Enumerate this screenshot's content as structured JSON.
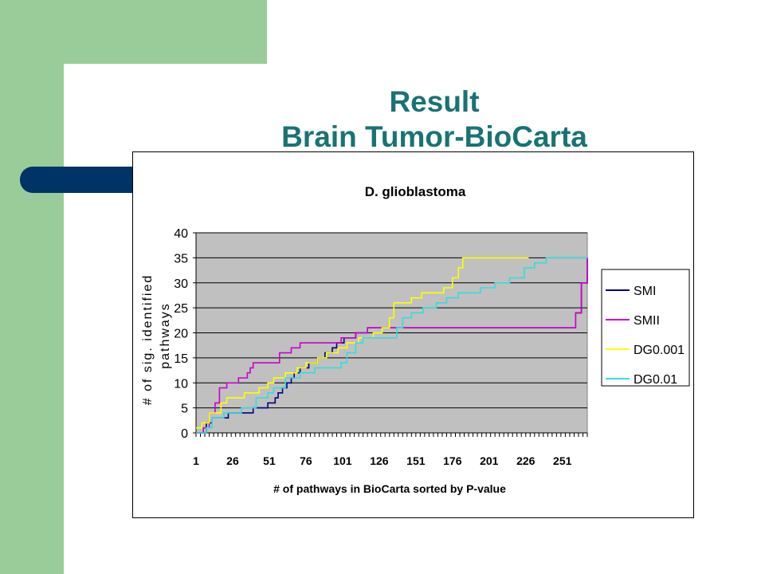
{
  "slide": {
    "title_line1": "Result",
    "title_line2": "Brain Tumor-BioCarta",
    "colors": {
      "green": "#99cc99",
      "navy": "#003366",
      "title": "#1a7373"
    }
  },
  "chart_data": {
    "type": "line",
    "title": "D. glioblastoma",
    "xlabel": "# of pathways in BioCarta sorted by P-value",
    "ylabel_line1": "# of sig. identified",
    "ylabel_line2": "pathways",
    "xlim": [
      1,
      268
    ],
    "ylim": [
      0,
      40
    ],
    "x_ticks": [
      1,
      26,
      51,
      76,
      101,
      126,
      151,
      176,
      201,
      226,
      251
    ],
    "y_ticks": [
      0,
      5,
      10,
      15,
      20,
      25,
      30,
      35,
      40
    ],
    "grid": true,
    "plot_background": "#c0c0c0",
    "legend_position": "right",
    "series": [
      {
        "name": "SMI",
        "color": "#000080",
        "points": [
          [
            1,
            0
          ],
          [
            5,
            0
          ],
          [
            8,
            2
          ],
          [
            12,
            3
          ],
          [
            20,
            3
          ],
          [
            23,
            4
          ],
          [
            28,
            4
          ],
          [
            35,
            4
          ],
          [
            40,
            5
          ],
          [
            45,
            5
          ],
          [
            50,
            6
          ],
          [
            55,
            7
          ],
          [
            57,
            8
          ],
          [
            60,
            9
          ],
          [
            63,
            10
          ],
          [
            66,
            11
          ],
          [
            68,
            12
          ],
          [
            72,
            13
          ],
          [
            78,
            14
          ],
          [
            84,
            15
          ],
          [
            89,
            16
          ],
          [
            94,
            17
          ],
          [
            97,
            18
          ],
          [
            102,
            19
          ],
          [
            110,
            20
          ],
          [
            118,
            21
          ],
          [
            126,
            21
          ],
          [
            140,
            21
          ],
          [
            255,
            21
          ],
          [
            260,
            24
          ],
          [
            264,
            30
          ],
          [
            268,
            35
          ]
        ]
      },
      {
        "name": "SMII",
        "color": "#cc00cc",
        "points": [
          [
            1,
            0
          ],
          [
            6,
            1
          ],
          [
            10,
            4
          ],
          [
            14,
            6
          ],
          [
            17,
            9
          ],
          [
            22,
            10
          ],
          [
            30,
            11
          ],
          [
            36,
            12
          ],
          [
            38,
            13
          ],
          [
            40,
            14
          ],
          [
            55,
            14
          ],
          [
            58,
            16
          ],
          [
            66,
            17
          ],
          [
            72,
            18
          ],
          [
            95,
            18
          ],
          [
            100,
            19
          ],
          [
            110,
            20
          ],
          [
            118,
            21
          ],
          [
            130,
            21
          ],
          [
            255,
            21
          ],
          [
            260,
            24
          ],
          [
            264,
            30
          ],
          [
            268,
            35
          ]
        ]
      },
      {
        "name": "DG0.001",
        "color": "#ffff00",
        "points": [
          [
            1,
            1
          ],
          [
            5,
            2
          ],
          [
            10,
            4
          ],
          [
            18,
            6
          ],
          [
            22,
            7
          ],
          [
            34,
            8
          ],
          [
            44,
            9
          ],
          [
            50,
            10
          ],
          [
            54,
            11
          ],
          [
            62,
            12
          ],
          [
            70,
            13
          ],
          [
            76,
            14
          ],
          [
            84,
            15
          ],
          [
            90,
            16
          ],
          [
            98,
            17
          ],
          [
            104,
            18
          ],
          [
            112,
            19
          ],
          [
            122,
            20
          ],
          [
            128,
            21
          ],
          [
            133,
            23
          ],
          [
            136,
            26
          ],
          [
            148,
            27
          ],
          [
            155,
            28
          ],
          [
            170,
            29
          ],
          [
            176,
            31
          ],
          [
            180,
            33
          ],
          [
            183,
            35
          ],
          [
            228,
            35
          ]
        ]
      },
      {
        "name": "DG0.01",
        "color": "#33dddd",
        "points": [
          [
            1,
            0
          ],
          [
            8,
            1
          ],
          [
            12,
            3
          ],
          [
            20,
            4
          ],
          [
            32,
            5
          ],
          [
            42,
            7
          ],
          [
            50,
            8
          ],
          [
            54,
            9
          ],
          [
            62,
            11
          ],
          [
            72,
            12
          ],
          [
            82,
            13
          ],
          [
            100,
            14
          ],
          [
            104,
            16
          ],
          [
            110,
            18
          ],
          [
            115,
            19
          ],
          [
            136,
            19
          ],
          [
            138,
            21
          ],
          [
            142,
            23
          ],
          [
            148,
            24
          ],
          [
            156,
            25
          ],
          [
            165,
            26
          ],
          [
            172,
            27
          ],
          [
            180,
            28
          ],
          [
            195,
            29
          ],
          [
            205,
            30
          ],
          [
            215,
            31
          ],
          [
            225,
            33
          ],
          [
            232,
            34
          ],
          [
            240,
            35
          ],
          [
            268,
            35
          ]
        ]
      }
    ]
  }
}
